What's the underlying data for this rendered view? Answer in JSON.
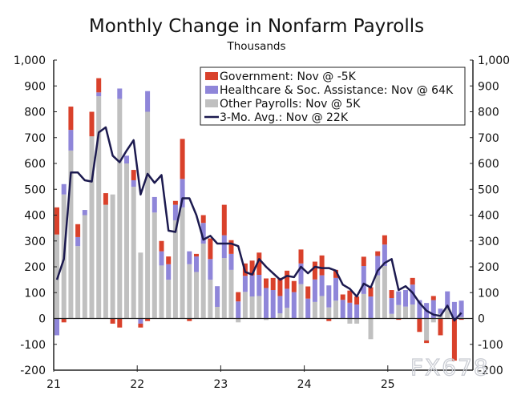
{
  "chart_data": {
    "type": "bar",
    "title": "Monthly Change in Nonfarm Payrolls",
    "subtitle": "Thousands",
    "xlabel": "",
    "ylabel": "",
    "ylim": [
      -200,
      1000
    ],
    "yticks": [
      -200,
      -100,
      0,
      100,
      200,
      300,
      400,
      500,
      600,
      700,
      800,
      900,
      1000
    ],
    "ytick_labels": [
      "-200",
      "-100",
      "0",
      "100",
      "200",
      "300",
      "400",
      "500",
      "600",
      "700",
      "800",
      "900",
      "1,000"
    ],
    "xtick_labels": [
      "21",
      "22",
      "23",
      "24",
      "25"
    ],
    "start": "2021-01",
    "stacked": true,
    "legend_position": "top-right",
    "series": [
      {
        "name": "Government",
        "legend": "Government: Nov @ -5K",
        "color": "#d9412b",
        "kind": "bar",
        "values": [
          105,
          -15,
          90,
          50,
          0,
          95,
          55,
          45,
          -20,
          -35,
          0,
          40,
          -15,
          -10,
          0,
          40,
          30,
          15,
          155,
          -10,
          10,
          30,
          80,
          0,
          118,
          53,
          36,
          48,
          57,
          86,
          37,
          47,
          70,
          70,
          43,
          54,
          47,
          69,
          77,
          -10,
          31,
          21,
          47,
          31,
          36,
          36,
          18,
          36,
          31,
          -5,
          0,
          26,
          -52,
          -10,
          16,
          -65,
          0,
          -163,
          -5
        ]
      },
      {
        "name": "Healthcare & Soc. Assistance",
        "legend": "Healthcare & Soc. Assistance: Nov @ 64K",
        "color": "#8f86d9",
        "kind": "bar",
        "values": [
          -65,
          40,
          80,
          35,
          20,
          0,
          15,
          0,
          0,
          40,
          30,
          25,
          -20,
          80,
          60,
          55,
          60,
          60,
          110,
          50,
          60,
          80,
          80,
          80,
          88,
          62,
          66,
          62,
          82,
          82,
          118,
          110,
          67,
          74,
          102,
          80,
          77,
          87,
          80,
          85,
          88,
          72,
          61,
          54,
          108,
          85,
          75,
          83,
          61,
          53,
          64,
          77,
          71,
          60,
          71,
          20,
          62,
          64,
          64
        ]
      },
      {
        "name": "Other Payrolls",
        "legend": "Other Payrolls: Nov @ 5K",
        "color": "#c0c0c0",
        "kind": "bar",
        "values": [
          325,
          480,
          650,
          280,
          400,
          705,
          860,
          440,
          480,
          850,
          600,
          510,
          255,
          800,
          410,
          205,
          150,
          380,
          430,
          210,
          180,
          290,
          150,
          45,
          234,
          188,
          -15,
          103,
          85,
          87,
          -6,
          0,
          20,
          41,
          0,
          133,
          0,
          64,
          87,
          43,
          69,
          0,
          -20,
          -20,
          95,
          -80,
          167,
          203,
          18,
          52,
          46,
          54,
          0,
          -85,
          -15,
          18,
          43,
          0,
          5
        ]
      },
      {
        "name": "3-Mo. Avg.",
        "legend": "3-Mo. Avg.: Nov @ 22K",
        "color": "#1c1a4f",
        "kind": "line",
        "values": [
          150,
          230,
          565,
          565,
          535,
          530,
          720,
          740,
          630,
          605,
          650,
          690,
          480,
          560,
          525,
          555,
          340,
          335,
          465,
          465,
          400,
          305,
          320,
          290,
          290,
          290,
          280,
          180,
          170,
          230,
          200,
          175,
          150,
          165,
          160,
          200,
          175,
          200,
          195,
          195,
          185,
          131,
          115,
          85,
          135,
          120,
          185,
          215,
          230,
          110,
          125,
          100,
          60,
          30,
          15,
          10,
          50,
          -8,
          22
        ]
      }
    ]
  }
}
